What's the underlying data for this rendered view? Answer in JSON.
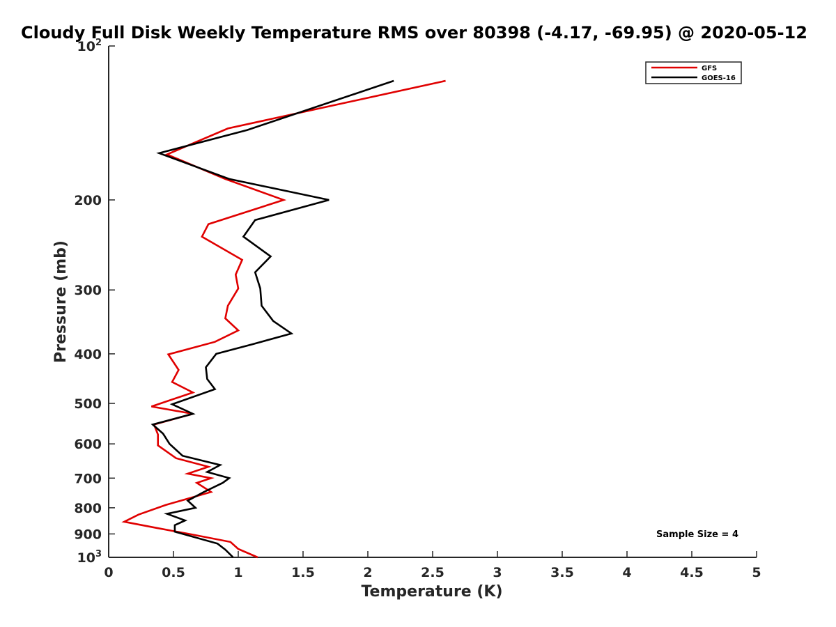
{
  "chart_data": {
    "type": "line",
    "title": "Cloudy Full Disk Weekly Temperature RMS over 80398 (-4.17, -69.95) @ 2020-05-12",
    "xlabel": "Temperature (K)",
    "ylabel": "Pressure (mb)",
    "xlim": [
      0,
      5
    ],
    "ylim": [
      100,
      1000
    ],
    "y_scale": "log",
    "y_reversed": true,
    "grid": false,
    "legend_position": "top-right",
    "x_ticks": [
      "0",
      "0.5",
      "1",
      "1.5",
      "2",
      "2.5",
      "3",
      "3.5",
      "4",
      "4.5",
      "5"
    ],
    "y_ticks": [
      {
        "value": 100,
        "base": "10",
        "exp": "2"
      },
      {
        "value": 200,
        "label": "200"
      },
      {
        "value": 300,
        "label": "300"
      },
      {
        "value": 400,
        "label": "400"
      },
      {
        "value": 500,
        "label": "500"
      },
      {
        "value": 600,
        "label": "600"
      },
      {
        "value": 700,
        "label": "700"
      },
      {
        "value": 800,
        "label": "800"
      },
      {
        "value": 900,
        "label": "900"
      },
      {
        "value": 1000,
        "base": "10",
        "exp": "3"
      }
    ],
    "annotation": "Sample Size = 4",
    "series": [
      {
        "name": "GFS",
        "color": "#e00000",
        "x": [
          2.6,
          0.92,
          0.45,
          0.9,
          1.35,
          0.77,
          0.72,
          1.03,
          0.98,
          1.0,
          0.92,
          0.9,
          1.0,
          0.82,
          0.46,
          0.54,
          0.49,
          0.65,
          0.33,
          0.65,
          0.35,
          0.38,
          0.38,
          0.52,
          0.77,
          0.61,
          0.79,
          0.68,
          0.79,
          0.44,
          0.23,
          0.12,
          0.37,
          0.62,
          0.94,
          1.0,
          1.15
        ],
        "y": [
          117,
          145,
          163,
          182,
          200,
          223,
          236,
          262,
          280,
          298,
          322,
          341,
          360,
          379,
          401,
          430,
          454,
          476,
          507,
          524,
          550,
          575,
          604,
          640,
          665,
          686,
          700,
          715,
          745,
          790,
          825,
          852,
          876,
          900,
          933,
          963,
          1000
        ]
      },
      {
        "name": "GOES-16",
        "color": "#000000",
        "x": [
          2.2,
          1.07,
          0.39,
          0.93,
          1.7,
          1.13,
          1.04,
          1.25,
          1.13,
          1.17,
          1.18,
          1.27,
          1.41,
          1.11,
          0.83,
          0.75,
          0.76,
          0.82,
          0.49,
          0.65,
          0.34,
          0.42,
          0.47,
          0.57,
          0.86,
          0.76,
          0.93,
          0.88,
          0.73,
          0.61,
          0.67,
          0.45,
          0.59,
          0.51,
          0.51,
          0.84,
          0.9,
          0.96
        ],
        "y": [
          117,
          146,
          162,
          182,
          200,
          219,
          236,
          258,
          277,
          298,
          322,
          345,
          365,
          383,
          400,
          425,
          448,
          469,
          502,
          524,
          550,
          573,
          600,
          633,
          660,
          681,
          700,
          715,
          746,
          775,
          800,
          822,
          847,
          865,
          891,
          940,
          966,
          1000
        ]
      }
    ]
  }
}
